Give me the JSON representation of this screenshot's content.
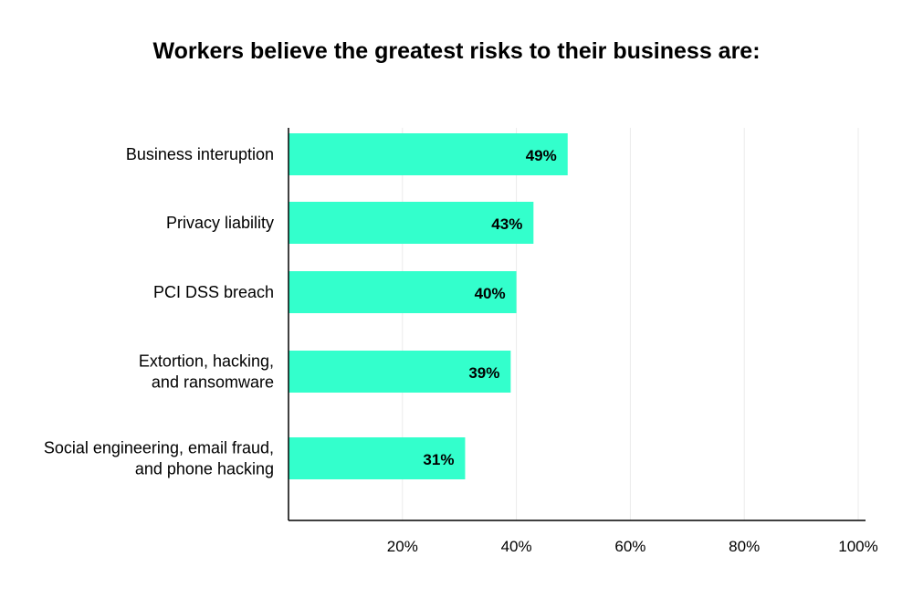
{
  "chart_data": {
    "type": "bar",
    "orientation": "horizontal",
    "title": "Workers believe the greatest risks to their business are:",
    "xlabel": "",
    "ylabel": "",
    "categories": [
      "Business interuption",
      "Privacy liability",
      "PCI DSS breach",
      "Extortion, hacking, and ransomware",
      "Social engineering, email fraud, and phone hacking"
    ],
    "category_lines": [
      [
        "Business interuption"
      ],
      [
        "Privacy liability"
      ],
      [
        "PCI DSS breach"
      ],
      [
        "Extortion, hacking,",
        "and ransomware"
      ],
      [
        "Social engineering, email fraud,",
        "and phone hacking"
      ]
    ],
    "values": [
      49,
      43,
      40,
      39,
      31
    ],
    "value_labels": [
      "49%",
      "43%",
      "40%",
      "39%",
      "31%"
    ],
    "xlim": [
      0,
      100
    ],
    "xticks": [
      20,
      40,
      60,
      80,
      100
    ],
    "xtick_labels": [
      "20%",
      "40%",
      "60%",
      "80%",
      "100%"
    ],
    "grid": true,
    "legend": "none",
    "colors": {
      "bar": "#33ffcc",
      "grid": "#ebebeb",
      "axis": "#000000",
      "text": "#000000"
    }
  }
}
